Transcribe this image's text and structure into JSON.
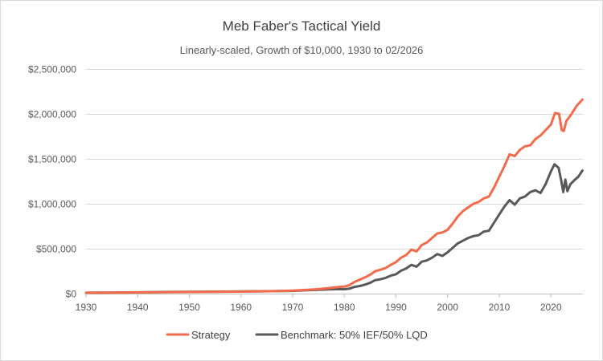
{
  "chart_data": {
    "type": "line",
    "title": "Meb Faber's Tactical Yield",
    "subtitle": "Linearly-scaled, Growth of $10,000, 1930 to 02/2026",
    "xlabel": "",
    "ylabel": "",
    "xlim": [
      1930,
      2026.2
    ],
    "ylim": [
      0,
      2500000
    ],
    "x_ticks": [
      1930,
      1940,
      1950,
      1960,
      1970,
      1980,
      1990,
      2000,
      2010,
      2020
    ],
    "y_ticks": [
      0,
      500000,
      1000000,
      1500000,
      2000000,
      2500000
    ],
    "y_tick_labels": [
      "$0",
      "$500,000",
      "$1,000,000",
      "$1,500,000",
      "$2,000,000",
      "$2,500,000"
    ],
    "grid": "horizontal",
    "legend": "bottom",
    "series": [
      {
        "name": "Strategy",
        "color": "#f26b4b",
        "points": [
          [
            1930,
            10000
          ],
          [
            1935,
            11500
          ],
          [
            1940,
            13500
          ],
          [
            1945,
            16000
          ],
          [
            1950,
            18000
          ],
          [
            1955,
            19500
          ],
          [
            1960,
            22000
          ],
          [
            1965,
            25500
          ],
          [
            1970,
            33000
          ],
          [
            1973,
            43000
          ],
          [
            1975,
            50000
          ],
          [
            1977,
            62000
          ],
          [
            1979,
            75000
          ],
          [
            1980,
            78000
          ],
          [
            1981,
            95000
          ],
          [
            1982,
            130000
          ],
          [
            1983,
            155000
          ],
          [
            1984,
            180000
          ],
          [
            1985,
            210000
          ],
          [
            1986,
            250000
          ],
          [
            1987,
            265000
          ],
          [
            1988,
            285000
          ],
          [
            1989,
            320000
          ],
          [
            1990,
            350000
          ],
          [
            1991,
            400000
          ],
          [
            1992,
            430000
          ],
          [
            1993,
            490000
          ],
          [
            1994,
            470000
          ],
          [
            1995,
            540000
          ],
          [
            1996,
            570000
          ],
          [
            1997,
            620000
          ],
          [
            1998,
            670000
          ],
          [
            1999,
            680000
          ],
          [
            2000,
            710000
          ],
          [
            2001,
            780000
          ],
          [
            2002,
            860000
          ],
          [
            2003,
            920000
          ],
          [
            2004,
            960000
          ],
          [
            2005,
            1000000
          ],
          [
            2006,
            1020000
          ],
          [
            2007,
            1060000
          ],
          [
            2008,
            1080000
          ],
          [
            2009,
            1180000
          ],
          [
            2010,
            1300000
          ],
          [
            2011,
            1420000
          ],
          [
            2012,
            1550000
          ],
          [
            2013,
            1530000
          ],
          [
            2014,
            1600000
          ],
          [
            2015,
            1640000
          ],
          [
            2016,
            1650000
          ],
          [
            2017,
            1720000
          ],
          [
            2018,
            1760000
          ],
          [
            2019,
            1820000
          ],
          [
            2020,
            1880000
          ],
          [
            2020.8,
            2010000
          ],
          [
            2021.6,
            2000000
          ],
          [
            2022.1,
            1820000
          ],
          [
            2022.5,
            1810000
          ],
          [
            2023,
            1920000
          ],
          [
            2024,
            2000000
          ],
          [
            2025,
            2090000
          ],
          [
            2026.1,
            2160000
          ]
        ]
      },
      {
        "name": "Benchmark: 50% IEF/50% LQD",
        "color": "#595959",
        "points": [
          [
            1930,
            10000
          ],
          [
            1935,
            12500
          ],
          [
            1940,
            14500
          ],
          [
            1945,
            17500
          ],
          [
            1950,
            20000
          ],
          [
            1955,
            21500
          ],
          [
            1960,
            24000
          ],
          [
            1965,
            26500
          ],
          [
            1970,
            30000
          ],
          [
            1973,
            38000
          ],
          [
            1975,
            42000
          ],
          [
            1977,
            46000
          ],
          [
            1979,
            50000
          ],
          [
            1980,
            48000
          ],
          [
            1981,
            55000
          ],
          [
            1982,
            75000
          ],
          [
            1983,
            85000
          ],
          [
            1984,
            100000
          ],
          [
            1985,
            120000
          ],
          [
            1986,
            150000
          ],
          [
            1987,
            160000
          ],
          [
            1988,
            175000
          ],
          [
            1989,
            200000
          ],
          [
            1990,
            215000
          ],
          [
            1991,
            255000
          ],
          [
            1992,
            280000
          ],
          [
            1993,
            320000
          ],
          [
            1994,
            300000
          ],
          [
            1995,
            355000
          ],
          [
            1996,
            370000
          ],
          [
            1997,
            400000
          ],
          [
            1998,
            440000
          ],
          [
            1999,
            420000
          ],
          [
            2000,
            460000
          ],
          [
            2001,
            510000
          ],
          [
            2002,
            560000
          ],
          [
            2003,
            590000
          ],
          [
            2004,
            620000
          ],
          [
            2005,
            640000
          ],
          [
            2006,
            650000
          ],
          [
            2007,
            690000
          ],
          [
            2008,
            700000
          ],
          [
            2009,
            790000
          ],
          [
            2010,
            880000
          ],
          [
            2011,
            970000
          ],
          [
            2012,
            1040000
          ],
          [
            2013,
            990000
          ],
          [
            2014,
            1060000
          ],
          [
            2015,
            1080000
          ],
          [
            2016,
            1130000
          ],
          [
            2017,
            1150000
          ],
          [
            2018,
            1120000
          ],
          [
            2019,
            1220000
          ],
          [
            2020,
            1360000
          ],
          [
            2020.7,
            1440000
          ],
          [
            2021.5,
            1400000
          ],
          [
            2022,
            1260000
          ],
          [
            2022.4,
            1130000
          ],
          [
            2022.8,
            1270000
          ],
          [
            2023.2,
            1140000
          ],
          [
            2023.8,
            1220000
          ],
          [
            2024.5,
            1260000
          ],
          [
            2025.3,
            1300000
          ],
          [
            2026.1,
            1370000
          ]
        ]
      }
    ]
  }
}
